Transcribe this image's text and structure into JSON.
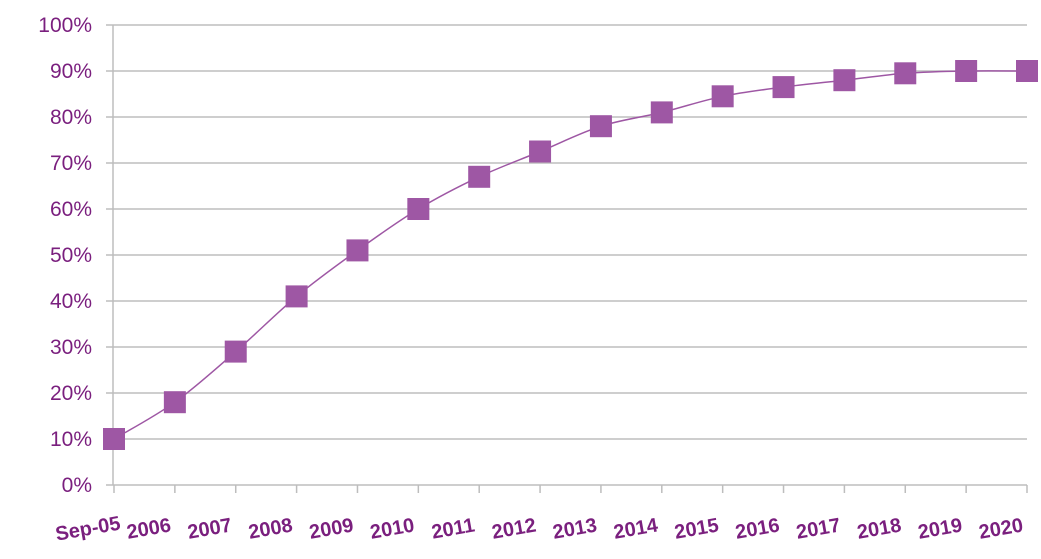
{
  "chart_data": {
    "type": "line",
    "title": "",
    "xlabel": "",
    "ylabel": "",
    "categories": [
      "Sep-05",
      "2006",
      "2007",
      "2008",
      "2009",
      "2010",
      "2011",
      "2012",
      "2013",
      "2014",
      "2015",
      "2016",
      "2017",
      "2018",
      "2019",
      "2020"
    ],
    "series": [
      {
        "values": [
          10,
          18,
          29,
          41,
          51,
          60,
          67,
          72.5,
          78,
          81,
          84.5,
          86.5,
          88,
          89.5,
          90,
          90
        ]
      }
    ],
    "ylim": [
      0,
      100
    ],
    "yticks": [
      "0%",
      "10%",
      "20%",
      "30%",
      "40%",
      "50%",
      "60%",
      "70%",
      "80%",
      "90%",
      "100%"
    ],
    "grid": true,
    "legend": "none",
    "colors": {
      "marker": "#9e57a4",
      "line": "#9e57a4",
      "text": "#7a1f7e",
      "grid": "#bdbdbd"
    }
  }
}
